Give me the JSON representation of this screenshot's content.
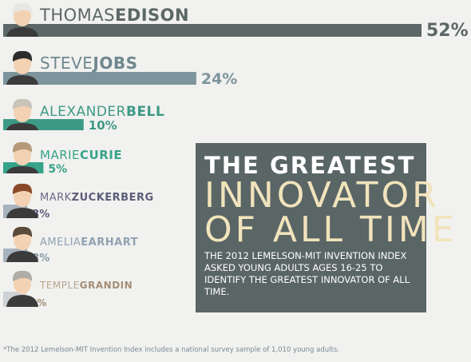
{
  "chart_data": {
    "type": "bar",
    "categories": [
      "THOMAS EDISON",
      "STEVE JOBS",
      "ALEXANDER BELL",
      "MARIE CURIE",
      "MARK ZUCKERBERG",
      "AMELIA EARHART",
      "TEMPLE GRANDIN"
    ],
    "rows": [
      {
        "first": "THOMAS",
        "last": "EDISON",
        "value": 52,
        "label": "52%",
        "color": "#5c6767",
        "label_color": "#5c6767",
        "first_color": "#5c6767",
        "last_color": "#5c6767",
        "avatar": "edison-portrait-icon",
        "hair": "#e8e6e2"
      },
      {
        "first": "STEVE",
        "last": "JOBS",
        "value": 24,
        "label": "24%",
        "color": "#7d949c",
        "label_color": "#7d949c",
        "first_color": "#6f878f",
        "last_color": "#6f878f",
        "avatar": "jobs-portrait-icon",
        "hair": "#2c2c2c"
      },
      {
        "first": "ALEXANDER",
        "last": "BELL",
        "value": 10,
        "label": "10%",
        "color": "#3d9a86",
        "label_color": "#3d9a86",
        "first_color": "#3d9a86",
        "last_color": "#3d9a86",
        "avatar": "bell-portrait-icon",
        "hair": "#c9c3b8"
      },
      {
        "first": "MARIE",
        "last": "CURIE",
        "value": 5,
        "label": "5%",
        "color": "#37a389",
        "label_color": "#37a389",
        "first_color": "#37a389",
        "last_color": "#37a389",
        "avatar": "curie-portrait-icon",
        "hair": "#b59a7a"
      },
      {
        "first": "MARK",
        "last": "ZUCKERBERG",
        "value": 3,
        "label": "3%",
        "color": "#a7b3bd",
        "label_color": "#5d5c7a",
        "first_color": "#6a6a86",
        "last_color": "#5d5c7a",
        "avatar": "zuckerberg-portrait-icon",
        "hair": "#8a4a2a"
      },
      {
        "first": "AMELIA",
        "last": "EARHART",
        "value": 3,
        "label": "3%",
        "color": "#a7b3bd",
        "label_color": "#8296a8",
        "first_color": "#8fa2b2",
        "last_color": "#8fa2b2",
        "avatar": "earhart-portrait-icon",
        "hair": "#5a4a3a"
      },
      {
        "first": "TEMPLE",
        "last": "GRANDIN",
        "value": 2,
        "label": "2%",
        "color": "#ccd2d6",
        "label_color": "#a48f76",
        "first_color": "#b9a58d",
        "last_color": "#a48f76",
        "avatar": "grandin-portrait-icon",
        "hair": "#b0aca6"
      }
    ]
  },
  "card": {
    "line1": "THE GREATEST",
    "line2": "INNOVATOR",
    "line3": "OF ALL TIME",
    "body": "The 2012 Lemelson-MIT Invention Index asked young adults ages 16-25 to identify the greatest innovator of all time."
  },
  "footnote": "*The 2012 Lemelson-MIT Invention Index includes a national survey sample of 1,010 young adults."
}
